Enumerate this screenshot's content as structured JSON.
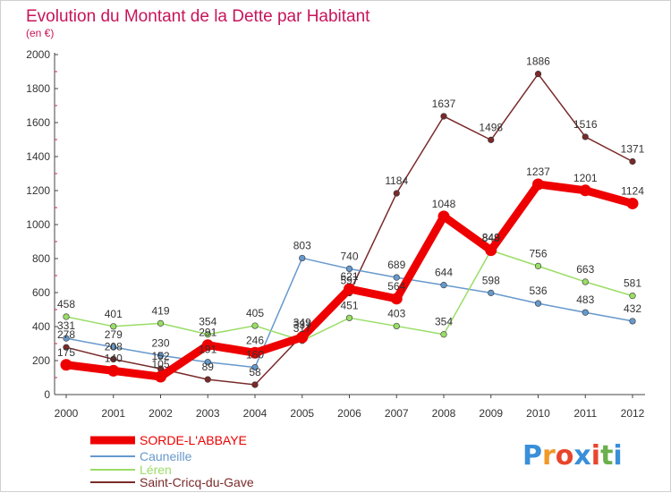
{
  "chart_data": {
    "type": "line",
    "title": "Evolution du Montant de la Dette par Habitant",
    "subtitle": "(en €)",
    "x": [
      "2000",
      "2001",
      "2002",
      "2003",
      "2004",
      "2005",
      "2006",
      "2007",
      "2008",
      "2009",
      "2010",
      "2011",
      "2012"
    ],
    "ylim": [
      0,
      2000
    ],
    "yticks": [
      0,
      200,
      400,
      600,
      800,
      1000,
      1200,
      1400,
      1600,
      1800,
      2000
    ],
    "grid": false,
    "legend_position": "bottom-left",
    "series": [
      {
        "name": "SORDE-L'ABBAYE",
        "color": "#ee0000",
        "values": [
          175,
          140,
          105,
          291,
          246,
          337,
          621,
          564,
          1048,
          849,
          1237,
          1201,
          1124
        ]
      },
      {
        "name": "Cauneille",
        "color": "#6699cc",
        "values": [
          331,
          279,
          230,
          191,
          160,
          803,
          740,
          689,
          644,
          598,
          536,
          483,
          432
        ]
      },
      {
        "name": "Léren",
        "color": "#99dd66",
        "values": [
          458,
          401,
          419,
          354,
          405,
          317,
          451,
          403,
          354,
          848,
          756,
          663,
          581
        ]
      },
      {
        "name": "Saint-Cricq-du-Gave",
        "color": "#7a2a2a",
        "values": [
          278,
          208,
          152,
          89,
          58,
          349,
          597,
          1184,
          1637,
          1498,
          1886,
          1516,
          1371
        ]
      }
    ]
  },
  "branding": {
    "logo_letters": [
      "P",
      "r",
      "o",
      "x",
      "i",
      "t",
      "i"
    ],
    "logo_colors": [
      "#3a8fd9",
      "#f09a2a",
      "#e8452c",
      "#3a8fd9",
      "#e8452c",
      "#6ab04c",
      "#3a8fd9"
    ]
  }
}
